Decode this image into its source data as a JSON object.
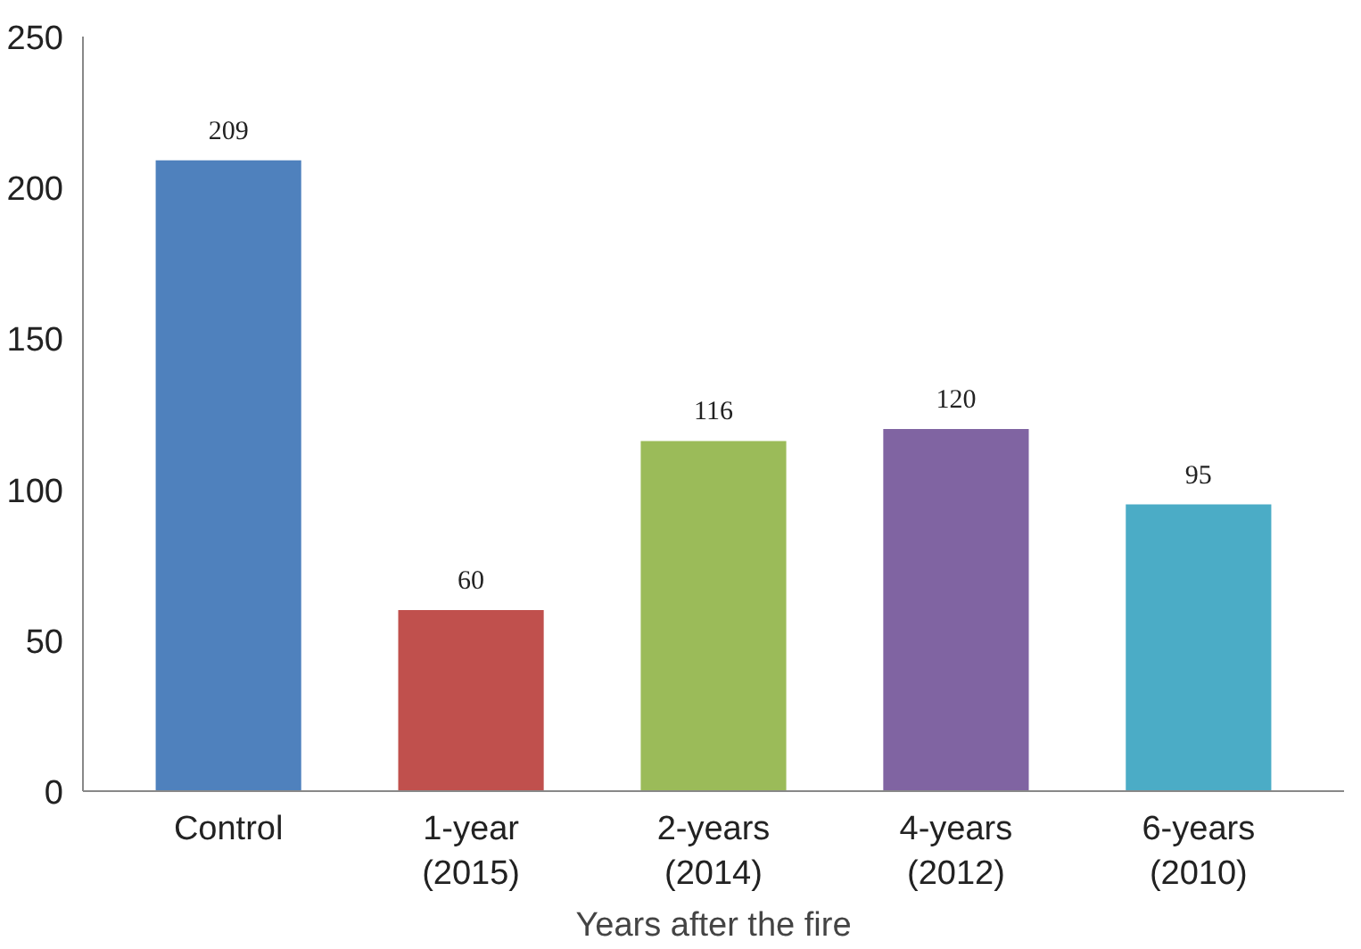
{
  "chart_data": {
    "type": "bar",
    "xlabel": "Years after the fire",
    "categories": [
      "Control",
      "1-year (2015)",
      "2-years (2014)",
      "4-years (2012)",
      "6-years (2010)"
    ],
    "values": [
      209,
      60,
      116,
      120,
      95
    ],
    "colors": [
      "#4f81bd",
      "#c0504d",
      "#9bbb59",
      "#8064a2",
      "#4bacc6"
    ],
    "ylim": [
      0,
      250
    ],
    "yticks": [
      0,
      50,
      100,
      150,
      200,
      250
    ],
    "grid": false,
    "data_labels": true
  }
}
